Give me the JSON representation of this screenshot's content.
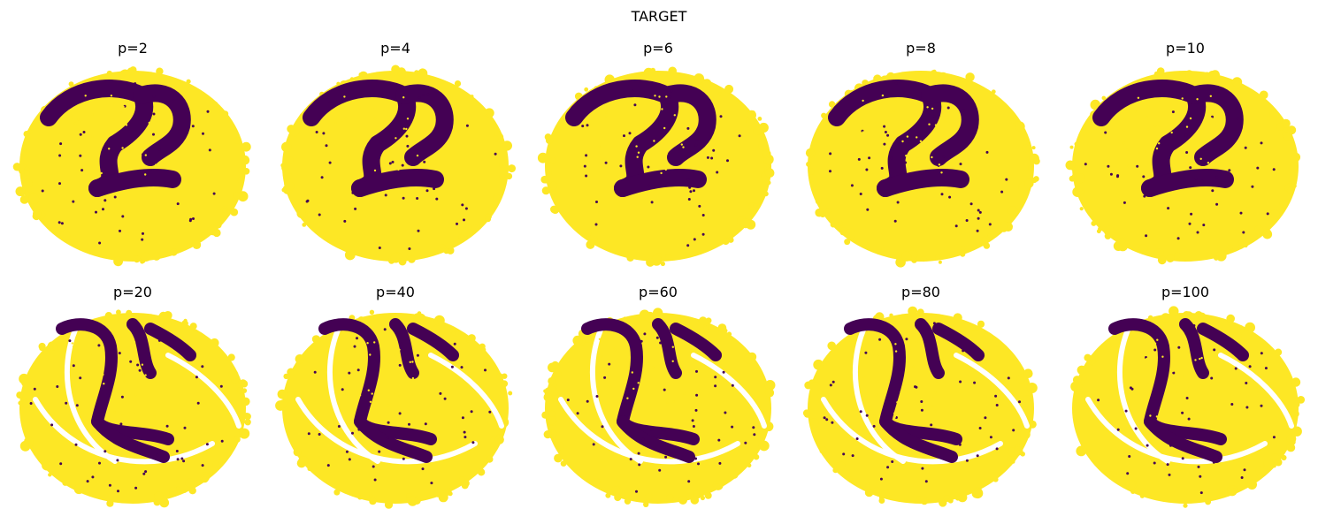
{
  "chart_data": {
    "type": "scatter",
    "title": "TARGET",
    "colors": {
      "class_a": "#440154",
      "class_b": "#fde725"
    },
    "grid": false,
    "legend": "none",
    "axes": "off",
    "panels": [
      {
        "title": "p=2"
      },
      {
        "title": "p=4"
      },
      {
        "title": "p=6"
      },
      {
        "title": "p=8"
      },
      {
        "title": "p=10"
      },
      {
        "title": "p=20"
      },
      {
        "title": "p=40"
      },
      {
        "title": "p=60"
      },
      {
        "title": "p=80"
      },
      {
        "title": "p=100"
      }
    ]
  }
}
